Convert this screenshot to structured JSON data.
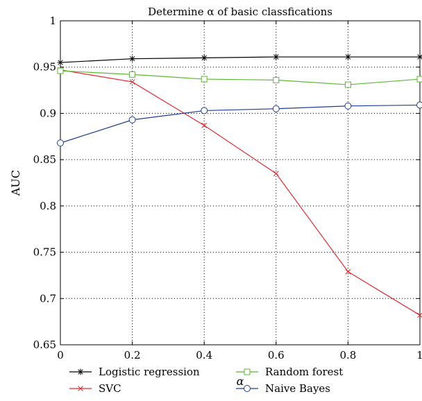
{
  "chart_data": {
    "type": "line",
    "title": "Determine α of basic classfications",
    "xlabel": "α",
    "ylabel": "AUC",
    "xlim": [
      0,
      1
    ],
    "ylim": [
      0.65,
      1
    ],
    "x_ticks": [
      "0",
      "0.2",
      "0.4",
      "0.6",
      "0.8",
      "1"
    ],
    "y_ticks": [
      "0.65",
      "0.7",
      "0.75",
      "0.8",
      "0.85",
      "0.9",
      "0.95",
      "1"
    ],
    "grid": true,
    "legend_position": "bottom-outside",
    "x": [
      0,
      0.2,
      0.4,
      0.6,
      0.8,
      1
    ],
    "series": [
      {
        "name": "Logistic regression",
        "color": "#000000",
        "marker": "star",
        "values": [
          0.955,
          0.959,
          0.96,
          0.961,
          0.961,
          0.961
        ]
      },
      {
        "name": "SVC",
        "color": "#e8262a",
        "marker": "x",
        "values": [
          0.947,
          0.934,
          0.887,
          0.835,
          0.729,
          0.682
        ]
      },
      {
        "name": "Random forest",
        "color": "#5cb832",
        "marker": "square",
        "values": [
          0.946,
          0.942,
          0.937,
          0.936,
          0.931,
          0.937
        ]
      },
      {
        "name": "Naive Bayes",
        "color": "#1f3d96",
        "marker": "circle",
        "values": [
          0.868,
          0.893,
          0.903,
          0.905,
          0.908,
          0.909
        ]
      }
    ]
  }
}
